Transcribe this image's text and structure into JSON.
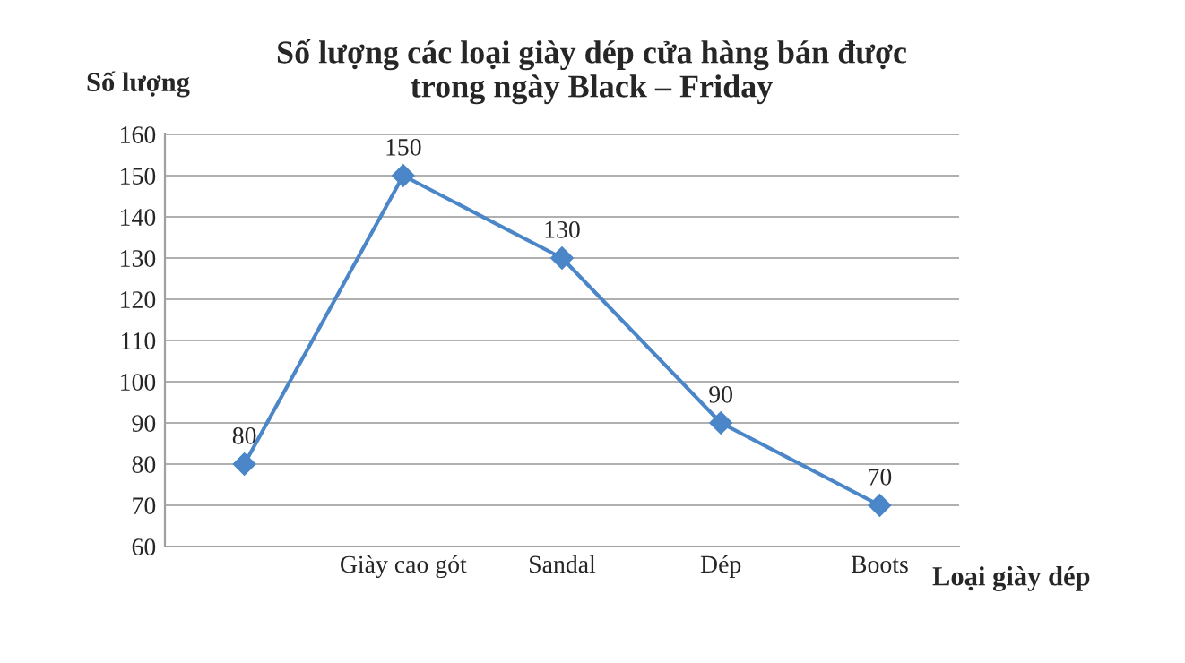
{
  "chart_data": {
    "type": "line",
    "title": "Số lượng các loại giày dép cửa hàng bán được\ntrong ngày Black – Friday",
    "xlabel": "Loại giày dép",
    "ylabel": "Số lượng",
    "categories": [
      null,
      "Giày cao gót",
      "Sandal",
      "Dép",
      "Boots"
    ],
    "series": [
      {
        "color": "#4a86c8",
        "values": [
          80,
          150,
          130,
          90,
          70
        ]
      }
    ],
    "ylim": [
      60,
      160
    ],
    "yticks": [
      60,
      70,
      80,
      90,
      100,
      110,
      120,
      130,
      140,
      150,
      160
    ],
    "grid": "y",
    "marker": "diamond",
    "line_style": "solid",
    "data_labels": true,
    "legend": false
  }
}
